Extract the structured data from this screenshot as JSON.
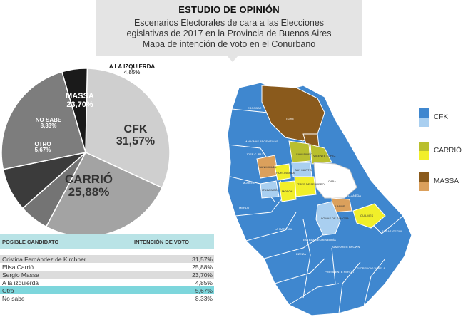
{
  "header": {
    "kicker": "ESTUDIO DE OPINIÓN",
    "title_line1": "Escenarios Electorales de cara a las Elecciones",
    "title_line2": "egislativas de 2017 en la Provincia de Buenos Aires",
    "title_line3": "Mapa de intención de voto en el Conurbano"
  },
  "chart_data": {
    "type": "pie",
    "slices": [
      {
        "label": "CFK",
        "value": 31.57,
        "value_text": "31,57%",
        "color": "#cfcfcf",
        "text_color": "#111111"
      },
      {
        "label": "CARRIÓ",
        "value": 25.88,
        "value_text": "25,88%",
        "color": "#a3a3a3",
        "text_color": "#111111"
      },
      {
        "label": "OTRO",
        "value": 5.67,
        "value_text": "5,67%",
        "color": "#747474",
        "text_color": "#ffffff"
      },
      {
        "label": "NO SABE",
        "value": 8.33,
        "value_text": "8,33%",
        "color": "#3b3b3b",
        "text_color": "#ffffff"
      },
      {
        "label": "MASSA",
        "value": 23.7,
        "value_text": "23,70%",
        "color": "#7d7d7d",
        "text_color": "#ffffff"
      },
      {
        "label": "A LA IZQUIERDA",
        "value": 4.85,
        "value_text": "4,85%",
        "color": "#1a1a1a",
        "text_color": "#111111"
      }
    ]
  },
  "table": {
    "header_candidate": "POSIBLE CANDIDATO",
    "header_vote": "INTENCIÓN DE VOTO",
    "rows": [
      {
        "name": "Cristina Fernández de Kirchner",
        "value": "31,57%"
      },
      {
        "name": "Elisa Carrió",
        "value": "25,88%"
      },
      {
        "name": "Sergio Massa",
        "value": "23,70%"
      },
      {
        "name": "A la izquierda",
        "value": "4,85%"
      },
      {
        "name": "Otro",
        "value": "5,67%"
      },
      {
        "name": "No sabe",
        "value": "8,33%"
      }
    ]
  },
  "map": {
    "colors": {
      "cfk_dark": "#3f87cf",
      "cfk_light": "#a9cff0",
      "carrio_dark": "#b9bf2e",
      "carrio_light": "#f1ef2a",
      "massa_dark": "#8a5a1c",
      "massa_light": "#dba05c",
      "caba": "#ffffff"
    },
    "districts": [
      {
        "name": "ESCOBAR",
        "party": "cfk"
      },
      {
        "name": "TIGRE",
        "party": "massa"
      },
      {
        "name": "SAN FERNANDO",
        "party": "massa"
      },
      {
        "name": "MALVINAS ARGENTINAS",
        "party": "cfk"
      },
      {
        "name": "JOSÉ C. PAZ",
        "party": "cfk"
      },
      {
        "name": "SAN MIGUEL",
        "party": "massa"
      },
      {
        "name": "SAN ISIDRO",
        "party": "carrio"
      },
      {
        "name": "VICENTE LÓPEZ",
        "party": "carrio"
      },
      {
        "name": "SAN MARTÍN",
        "party": "cfk"
      },
      {
        "name": "TRES DE FEBRERO",
        "party": "carrio"
      },
      {
        "name": "HURLINGHAM",
        "party": "carrio"
      },
      {
        "name": "ITUZAINGÓ",
        "party": "cfk"
      },
      {
        "name": "MORENO",
        "party": "cfk"
      },
      {
        "name": "MERLO",
        "party": "cfk"
      },
      {
        "name": "MORÓN",
        "party": "carrio"
      },
      {
        "name": "CABA",
        "party": "none"
      },
      {
        "name": "LA MATANZA",
        "party": "cfk"
      },
      {
        "name": "AVELLANEDA",
        "party": "cfk"
      },
      {
        "name": "LANÚS",
        "party": "massa"
      },
      {
        "name": "QUILMES",
        "party": "carrio"
      },
      {
        "name": "LOMAS DE ZAMORA",
        "party": "cfk"
      },
      {
        "name": "ESTEBAN ECHEVERRÍA",
        "party": "cfk"
      },
      {
        "name": "EZEIZA",
        "party": "cfk"
      },
      {
        "name": "ALMIRANTE BROWN",
        "party": "cfk"
      },
      {
        "name": "BERAZATEGUI",
        "party": "cfk"
      },
      {
        "name": "FLORENCIO VARELA",
        "party": "cfk"
      },
      {
        "name": "PRESIDENTE PERÓN",
        "party": "cfk"
      }
    ]
  },
  "legend": {
    "items": [
      {
        "label": "CFK"
      },
      {
        "label": "CARRIÓ"
      },
      {
        "label": "MASSA"
      }
    ]
  }
}
